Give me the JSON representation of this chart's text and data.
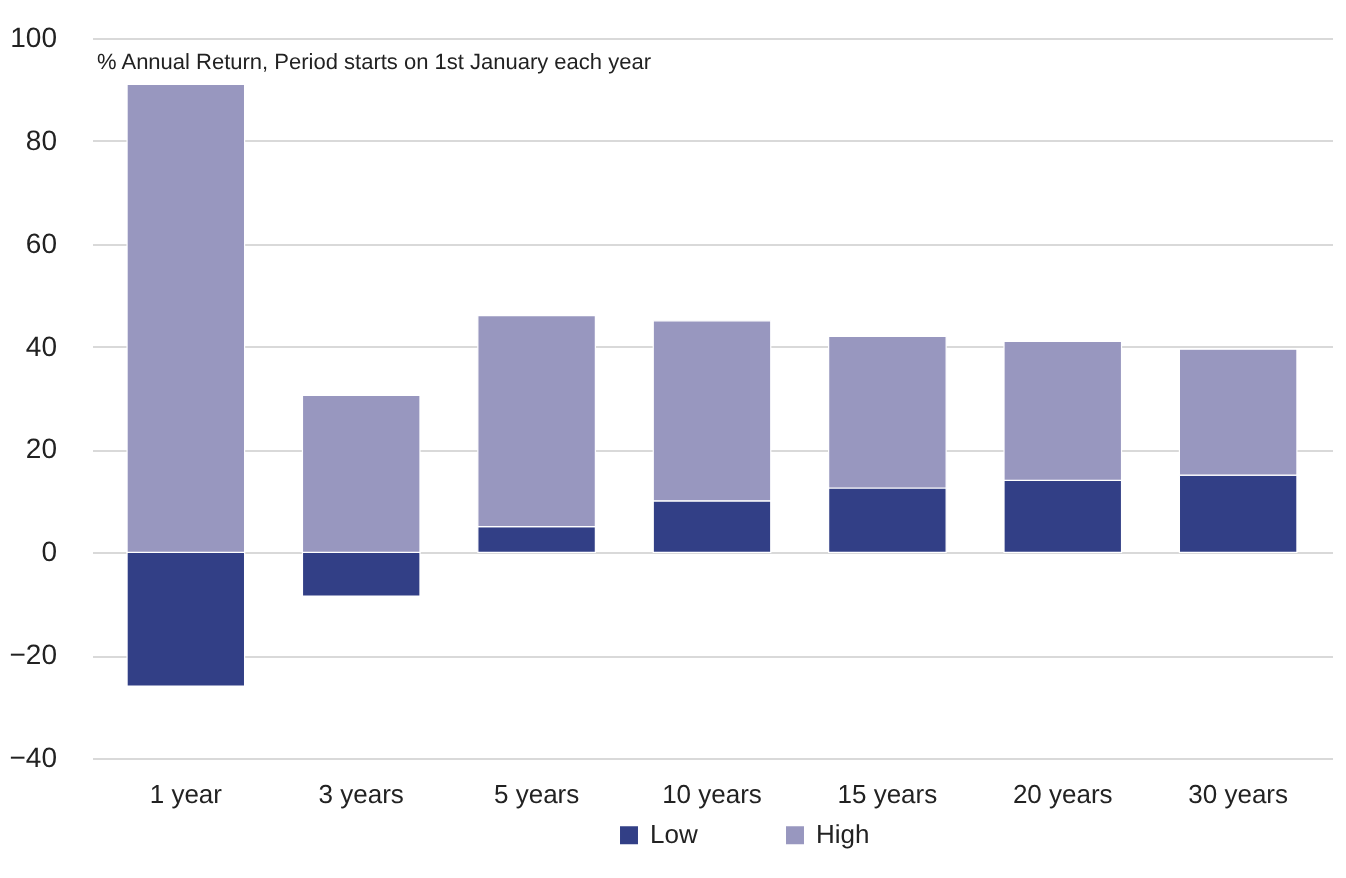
{
  "chart_data": {
    "type": "bar",
    "ylabel": "% Annual Return, Period starts on 1st January each year",
    "categories": [
      "1 year",
      "3 years",
      "5 years",
      "10 years",
      "15 years",
      "20 years",
      "30 years"
    ],
    "stacked": true,
    "series": [
      {
        "name": "Low",
        "color": "#323f86",
        "values": [
          -26,
          -8.5,
          5,
          10,
          12.5,
          14,
          15
        ]
      },
      {
        "name": "High",
        "color": "#9897bf",
        "values": [
          91,
          30.5,
          41,
          35,
          29.5,
          27,
          24.5
        ]
      }
    ],
    "ylim": [
      -40,
      100
    ],
    "yticks": [
      -40,
      -20,
      0,
      20,
      40,
      60,
      80,
      100
    ],
    "grid": "y",
    "legend": "bottom"
  }
}
